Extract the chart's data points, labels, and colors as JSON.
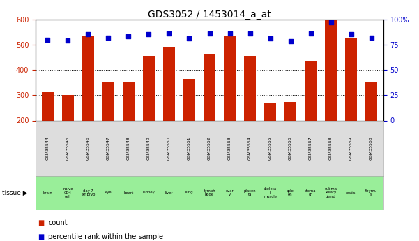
{
  "title": "GDS3052 / 1453014_a_at",
  "samples": [
    "GSM35544",
    "GSM35545",
    "GSM35546",
    "GSM35547",
    "GSM35548",
    "GSM35549",
    "GSM35550",
    "GSM35551",
    "GSM35552",
    "GSM35553",
    "GSM35554",
    "GSM35555",
    "GSM35556",
    "GSM35557",
    "GSM35558",
    "GSM35559",
    "GSM35560"
  ],
  "counts": [
    315,
    302,
    535,
    350,
    350,
    455,
    490,
    365,
    465,
    535,
    455,
    270,
    272,
    435,
    595,
    525,
    350
  ],
  "percentiles": [
    80,
    79,
    85,
    82,
    83,
    85,
    86,
    81,
    86,
    86,
    86,
    81,
    78,
    86,
    97,
    85,
    82
  ],
  "tissues": [
    "brain",
    "naive\nCD4\ncell",
    "day 7\nembryо",
    "eye",
    "heart",
    "kidney",
    "liver",
    "lung",
    "lymph\nnode",
    "ovar\ny",
    "placen\nta",
    "skeleta\nl\nmuscle",
    "sple\nen",
    "stoma\nch",
    "subma\nxillary\ngland",
    "testis",
    "thymu\ns"
  ],
  "tissue_bg_colors": [
    "#ccffcc",
    "#ccffcc",
    "#ccffcc",
    "#ccffcc",
    "#ccffcc",
    "#ccffcc",
    "#ccffcc",
    "#ccffcc",
    "#ccffcc",
    "#ccffcc",
    "#ccffcc",
    "#ccffcc",
    "#ccffcc",
    "#ccffcc",
    "#ccffcc",
    "#ccffcc",
    "#ccffcc"
  ],
  "bar_color": "#cc2200",
  "dot_color": "#0000cc",
  "ylim_left": [
    200,
    600
  ],
  "ylim_right": [
    0,
    100
  ],
  "yticks_left": [
    200,
    300,
    400,
    500,
    600
  ],
  "yticks_right": [
    0,
    25,
    50,
    75,
    100
  ],
  "ytick_labels_right": [
    "0",
    "25",
    "50",
    "75",
    "100%"
  ],
  "left_tick_color": "#cc2200",
  "right_tick_color": "#0000cc",
  "legend_count_label": "count",
  "legend_pct_label": "percentile rank within the sample",
  "background_color": "#ffffff",
  "grid_color": "#000000",
  "tick_label_size": 7,
  "title_fontsize": 10,
  "gsm_area_color": "#dddddd",
  "tissue_area_color": "#99ee99"
}
